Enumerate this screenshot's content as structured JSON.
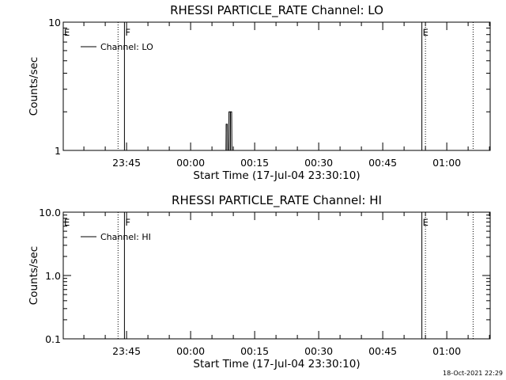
{
  "chart_data": [
    {
      "type": "line",
      "title": "RHESSI PARTICLE_RATE Channel: LO",
      "ylabel": "Counts/sec",
      "xlabel": "Start Time (17-Jul-04 23:30:10)",
      "yscale": "log",
      "ylim": [
        1,
        10
      ],
      "ytick_labels": [
        "1",
        "10"
      ],
      "xlim": [
        "23:30:10",
        "01:10:10"
      ],
      "xtick_labels": [
        "23:45",
        "00:00",
        "00:15",
        "00:30",
        "00:45",
        "01:00"
      ],
      "legend": {
        "placement": "top-left",
        "entries": [
          "Channel: LO"
        ]
      },
      "series": [
        {
          "name": "Channel: LO",
          "x": [
            "00:08:00",
            "00:08:20",
            "00:08:40",
            "00:09:00",
            "00:09:20",
            "00:09:40"
          ],
          "y": [
            1,
            1.6,
            1,
            2.0,
            2.0,
            1
          ]
        }
      ],
      "event_lines": [
        {
          "time": "23:43:00",
          "style": "dotted",
          "label": ""
        },
        {
          "time": "23:44:30",
          "style": "solid",
          "label": "F"
        },
        {
          "time": "00:54:10",
          "style": "solid",
          "label": "E"
        },
        {
          "time": "00:55:00",
          "style": "dotted",
          "label": ""
        },
        {
          "time": "01:06:10",
          "style": "dotted",
          "label": ""
        }
      ],
      "edge_label": "E",
      "grid": false
    },
    {
      "type": "line",
      "title": "RHESSI PARTICLE_RATE Channel: HI",
      "ylabel": "Counts/sec",
      "xlabel": "Start Time (17-Jul-04 23:30:10)",
      "yscale": "log",
      "ylim": [
        0.1,
        10
      ],
      "ytick_labels": [
        "0.1",
        "1.0",
        "10.0"
      ],
      "xlim": [
        "23:30:10",
        "01:10:10"
      ],
      "xtick_labels": [
        "23:45",
        "00:00",
        "00:15",
        "00:30",
        "00:45",
        "01:00"
      ],
      "legend": {
        "placement": "top-left",
        "entries": [
          "Channel: HI"
        ]
      },
      "series": [
        {
          "name": "Channel: HI",
          "x": [],
          "y": []
        }
      ],
      "event_lines": [
        {
          "time": "23:43:00",
          "style": "dotted",
          "label": ""
        },
        {
          "time": "23:44:30",
          "style": "solid",
          "label": "F"
        },
        {
          "time": "00:54:10",
          "style": "solid",
          "label": "E"
        },
        {
          "time": "00:55:00",
          "style": "dotted",
          "label": ""
        },
        {
          "time": "01:06:10",
          "style": "dotted",
          "label": ""
        }
      ],
      "edge_label": "E",
      "grid": false
    }
  ],
  "footer": {
    "timestamp": "18-Oct-2021 22:29"
  },
  "colors": {
    "background": "#ffffff",
    "foreground": "#000000"
  }
}
